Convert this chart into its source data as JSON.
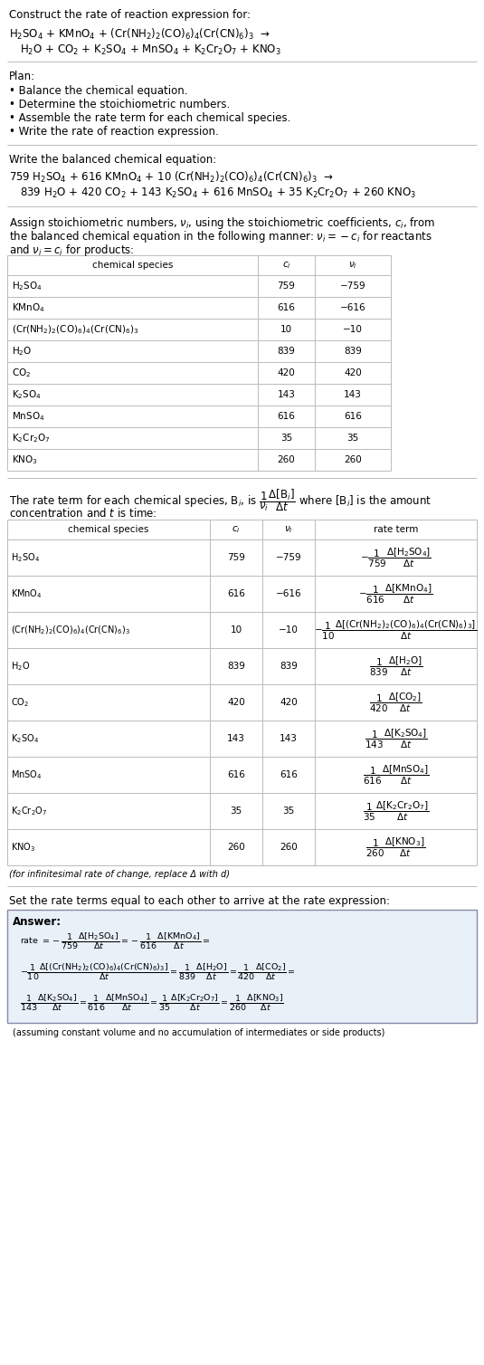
{
  "bg_color": "#ffffff",
  "text_color": "#000000",
  "border_color": "#aaaaaa",
  "title": "Construct the rate of reaction expression for:",
  "rxn_ub_l1": "H$_2$SO$_4$ + KMnO$_4$ + (Cr(NH$_2$)$_2$(CO)$_6$)$_4$(Cr(CN)$_6$)$_3$  →",
  "rxn_ub_l2": "H$_2$O + CO$_2$ + K$_2$SO$_4$ + MnSO$_4$ + K$_2$Cr$_2$O$_7$ + KNO$_3$",
  "plan_header": "Plan:",
  "plan_items": [
    "• Balance the chemical equation.",
    "• Determine the stoichiometric numbers.",
    "• Assemble the rate term for each chemical species.",
    "• Write the rate of reaction expression."
  ],
  "bal_header": "Write the balanced chemical equation:",
  "rxn_bal_l1": "759 H$_2$SO$_4$ + 616 KMnO$_4$ + 10 (Cr(NH$_2$)$_2$(CO)$_6$)$_4$(Cr(CN)$_6$)$_3$  →",
  "rxn_bal_l2": "839 H$_2$O + 420 CO$_2$ + 143 K$_2$SO$_4$ + 616 MnSO$_4$ + 35 K$_2$Cr$_2$O$_7$ + 260 KNO$_3$",
  "stoich_l1": "Assign stoichiometric numbers, $\\nu_i$, using the stoichiometric coefficients, $c_i$, from",
  "stoich_l2": "the balanced chemical equation in the following manner: $\\nu_i = -c_i$ for reactants",
  "stoich_l3": "and $\\nu_i = c_i$ for products:",
  "t1_species": [
    "H$_2$SO$_4$",
    "KMnO$_4$",
    "(Cr(NH$_2$)$_2$(CO)$_6$)$_4$(Cr(CN)$_6$)$_3$",
    "H$_2$O",
    "CO$_2$",
    "K$_2$SO$_4$",
    "MnSO$_4$",
    "K$_2$Cr$_2$O$_7$",
    "KNO$_3$"
  ],
  "t1_ci": [
    "759",
    "616",
    "10",
    "839",
    "420",
    "143",
    "616",
    "35",
    "260"
  ],
  "t1_vi": [
    "−759",
    "−616",
    "−10",
    "839",
    "420",
    "143",
    "616",
    "35",
    "260"
  ],
  "rate_intro_l1": "The rate term for each chemical species, B$_i$, is $\\dfrac{1}{\\nu_i}\\dfrac{\\Delta[\\mathrm{B}_i]}{\\Delta t}$ where [B$_i$] is the amount",
  "rate_intro_l2": "concentration and $t$ is time:",
  "t2_rate_terms": [
    "$-\\dfrac{1}{759}\\dfrac{\\Delta[\\mathrm{H_2SO_4}]}{\\Delta t}$",
    "$-\\dfrac{1}{616}\\dfrac{\\Delta[\\mathrm{KMnO_4}]}{\\Delta t}$",
    "$-\\dfrac{1}{10}\\dfrac{\\Delta[\\mathrm{(Cr(NH_2)_2(CO)_6)_4(Cr(CN)_6)_3}]}{\\Delta t}$",
    "$\\dfrac{1}{839}\\dfrac{\\Delta[\\mathrm{H_2O}]}{\\Delta t}$",
    "$\\dfrac{1}{420}\\dfrac{\\Delta[\\mathrm{CO_2}]}{\\Delta t}$",
    "$\\dfrac{1}{143}\\dfrac{\\Delta[\\mathrm{K_2SO_4}]}{\\Delta t}$",
    "$\\dfrac{1}{616}\\dfrac{\\Delta[\\mathrm{MnSO_4}]}{\\Delta t}$",
    "$\\dfrac{1}{35}\\dfrac{\\Delta[\\mathrm{K_2Cr_2O_7}]}{\\Delta t}$",
    "$\\dfrac{1}{260}\\dfrac{\\Delta[\\mathrm{KNO_3}]}{\\Delta t}$"
  ],
  "infinitesimal_note": "(for infinitesimal rate of change, replace Δ with d)",
  "set_equal_header": "Set the rate terms equal to each other to arrive at the rate expression:",
  "answer_label": "Answer:",
  "answer_note": "(assuming constant volume and no accumulation of intermediates or side products)",
  "ans_l1_parts": [
    "rate $= -\\dfrac{1}{759}\\dfrac{\\Delta[\\mathrm{H_2SO_4}]}{\\Delta t}$",
    "$= -\\dfrac{1}{616}\\dfrac{\\Delta[\\mathrm{KMnO_4}]}{\\Delta t}$",
    "$=$"
  ],
  "ans_l2_parts": [
    "$-\\dfrac{1}{10}\\dfrac{\\Delta[\\mathrm{(Cr(NH_2)_2(CO)_6)_4(Cr(CN)_6)_3}]}{\\Delta t}$",
    "$= \\dfrac{1}{839}\\dfrac{\\Delta[\\mathrm{H_2O}]}{\\Delta t}$",
    "$= \\dfrac{1}{420}\\dfrac{\\Delta[\\mathrm{CO_2}]}{\\Delta t}$",
    "$=$"
  ],
  "ans_l3_parts": [
    "$\\dfrac{1}{143}\\dfrac{\\Delta[\\mathrm{K_2SO_4}]}{\\Delta t}$",
    "$= \\dfrac{1}{616}\\dfrac{\\Delta[\\mathrm{MnSO_4}]}{\\Delta t}$",
    "$= \\dfrac{1}{35}\\dfrac{\\Delta[\\mathrm{K_2Cr_2O_7}]}{\\Delta t}$",
    "$= \\dfrac{1}{260}\\dfrac{\\Delta[\\mathrm{KNO_3}]}{\\Delta t}$"
  ]
}
